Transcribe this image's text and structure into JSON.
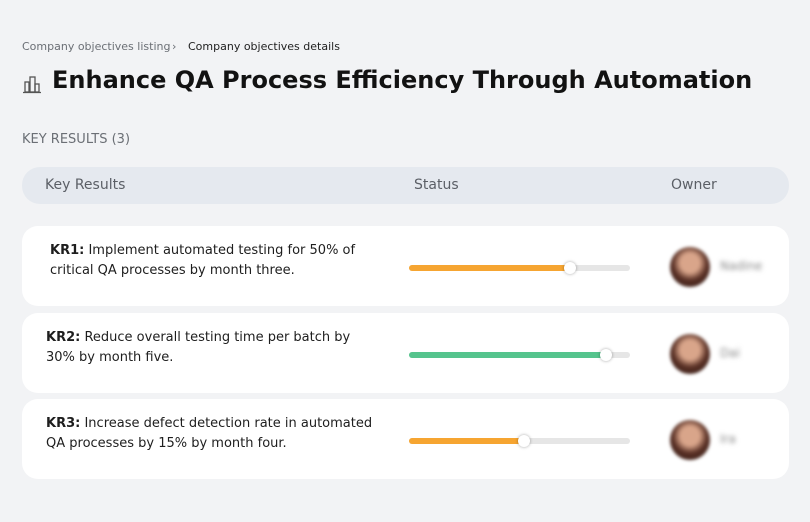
{
  "breadcrumb": {
    "parent": "Company objectives listing",
    "separator": "›",
    "current": "Company objectives details"
  },
  "header": {
    "title": "Enhance QA Process Efficiency Through Automation"
  },
  "section": {
    "label": "KEY RESULTS (3)"
  },
  "table": {
    "columns": [
      "Key Results",
      "Status",
      "Owner"
    ],
    "progress_range": [
      0,
      100
    ],
    "rows": [
      {
        "key": "KR1:",
        "text": "Implement automated testing for 50% of critical QA processes by month three.",
        "progress": 73,
        "color": "#f6a531",
        "owner": "Nadine"
      },
      {
        "key": "KR2:",
        "text": "Reduce overall testing time per batch by 30% by month five.",
        "progress": 89,
        "color": "#55c48d",
        "owner": "Dai"
      },
      {
        "key": "KR3:",
        "text": "Increase defect detection rate in automated QA processes by 15% by month four.",
        "progress": 52,
        "color": "#f6a531",
        "owner": "Ira"
      }
    ]
  }
}
